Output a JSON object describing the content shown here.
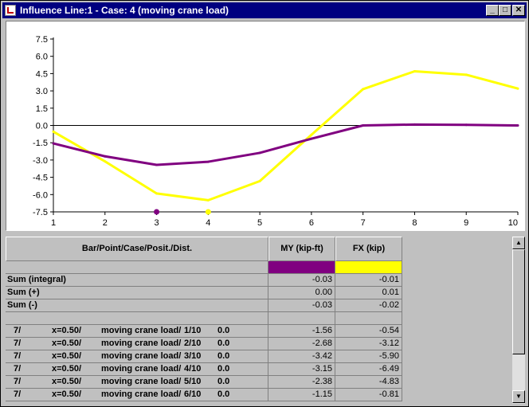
{
  "window": {
    "title": "Influence Line:1 - Case: 4 (moving crane load)",
    "buttons": {
      "minimize": "_",
      "maximize": "□",
      "close": "✕"
    }
  },
  "chart_data": {
    "type": "line",
    "x": [
      1,
      2,
      3,
      4,
      5,
      6,
      7,
      8,
      9,
      10
    ],
    "xticks": [
      "1",
      "2",
      "3",
      "4",
      "5",
      "6",
      "7",
      "8",
      "9",
      "10"
    ],
    "yticks": [
      "7.5",
      "6.0",
      "4.5",
      "3.0",
      "1.5",
      "0.0",
      "-1.5",
      "-3.0",
      "-4.5",
      "-6.0",
      "-7.5"
    ],
    "xlim": [
      1,
      10
    ],
    "ylim": [
      -7.5,
      7.5
    ],
    "series": [
      {
        "name": "MY (kip-ft)",
        "color": "#800080",
        "values": [
          -1.56,
          -2.68,
          -3.42,
          -3.15,
          -2.38,
          -1.15,
          0.0,
          0.08,
          0.05,
          0.0
        ]
      },
      {
        "name": "FX (kip)",
        "color": "#ffff00",
        "values": [
          -0.54,
          -3.12,
          -5.9,
          -6.49,
          -4.83,
          -0.81,
          3.15,
          4.7,
          4.4,
          3.2
        ]
      }
    ],
    "markers": [
      {
        "series": "MY (kip-ft)",
        "x": 3,
        "y": -7.5
      },
      {
        "series": "FX (kip)",
        "x": 4,
        "y": -7.5
      }
    ],
    "grid": false
  },
  "table": {
    "header": {
      "label": "Bar/Point/Case/Posit./Dist.",
      "col1": "MY (kip-ft)",
      "col2": "FX (kip)"
    },
    "swatches": [
      "#800080",
      "#ffff00"
    ],
    "sums": [
      {
        "label": "Sum (integral)",
        "my": "-0.03",
        "fx": "-0.01"
      },
      {
        "label": "Sum (+)",
        "my": "0.00",
        "fx": "0.01"
      },
      {
        "label": "Sum (-)",
        "my": "-0.03",
        "fx": "-0.02"
      }
    ],
    "rows": [
      {
        "bar": "7/",
        "x": "x=0.50/",
        "case": "moving crane load/",
        "pos": "1/10",
        "dist": "0.0",
        "my": "-1.56",
        "fx": "-0.54"
      },
      {
        "bar": "7/",
        "x": "x=0.50/",
        "case": "moving crane load/",
        "pos": "2/10",
        "dist": "0.0",
        "my": "-2.68",
        "fx": "-3.12"
      },
      {
        "bar": "7/",
        "x": "x=0.50/",
        "case": "moving crane load/",
        "pos": "3/10",
        "dist": "0.0",
        "my": "-3.42",
        "fx": "-5.90"
      },
      {
        "bar": "7/",
        "x": "x=0.50/",
        "case": "moving crane load/",
        "pos": "4/10",
        "dist": "0.0",
        "my": "-3.15",
        "fx": "-6.49"
      },
      {
        "bar": "7/",
        "x": "x=0.50/",
        "case": "moving crane load/",
        "pos": "5/10",
        "dist": "0.0",
        "my": "-2.38",
        "fx": "-4.83"
      },
      {
        "bar": "7/",
        "x": "x=0.50/",
        "case": "moving crane load/",
        "pos": "6/10",
        "dist": "0.0",
        "my": "-1.15",
        "fx": "-0.81"
      }
    ]
  },
  "scrollbar": {
    "up": "▲",
    "down": "▼"
  }
}
